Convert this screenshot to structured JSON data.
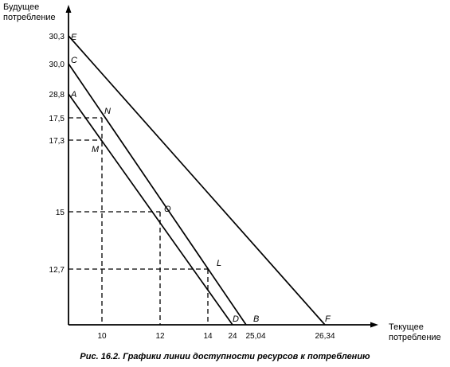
{
  "y_axis_label": [
    "Будущее",
    "потребление"
  ],
  "x_axis_label": [
    "Текущее",
    "потребление"
  ],
  "y_ticks": [
    "30,3",
    "30,0",
    "28,8",
    "17,5",
    "17,3",
    "15",
    "12,7"
  ],
  "x_ticks": [
    "10",
    "12",
    "14",
    "24",
    "25,04",
    "26,34"
  ],
  "points": {
    "E": {
      "x": 0,
      "y": 30.3
    },
    "C": {
      "x": 0,
      "y": 30.0
    },
    "A": {
      "x": 0,
      "y": 28.8
    },
    "N": {
      "x": 10,
      "y": 17.5
    },
    "M": {
      "x": 10,
      "y": 17.3
    },
    "O": {
      "x": 12,
      "y": 15
    },
    "L": {
      "x": 14,
      "y": 12.7
    },
    "D": {
      "x": 24,
      "y": 0
    },
    "B": {
      "x": 25.04,
      "y": 0
    },
    "F": {
      "x": 26.34,
      "y": 0
    }
  },
  "lines": [
    {
      "from": "A",
      "to": "D"
    },
    {
      "from": "C",
      "to": "B"
    },
    {
      "from": "E",
      "to": "F"
    }
  ],
  "caption": "Рис. 16.2. Графики линии доступности ресурсов к потреблению"
}
